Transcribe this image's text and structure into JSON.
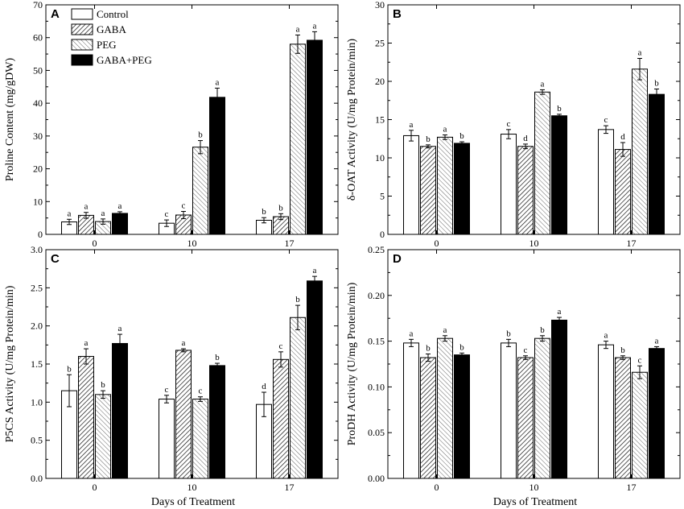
{
  "shared": {
    "groups": [
      "Control",
      "GABA",
      "PEG",
      "GABA+PEG"
    ],
    "categories": [
      "0",
      "10",
      "17"
    ],
    "xlabel": "Days of Treatment",
    "fills": {
      "Control": "#ffffff",
      "GABA": "hatch-dense",
      "PEG": "hatch-sparse",
      "GABA+PEG": "#000000"
    }
  },
  "chart_data": [
    {
      "type": "bar",
      "panel": "A",
      "ylabel": "Proline Content (mg/gDW)",
      "ylim": [
        0,
        70
      ],
      "yticks": [
        "0",
        "10",
        "20",
        "30",
        "40",
        "50",
        "60",
        "70"
      ],
      "categories": [
        "0",
        "10",
        "17"
      ],
      "show_legend": true,
      "series": [
        {
          "name": "Control",
          "values": [
            3.8,
            3.4,
            4.3
          ],
          "errors": [
            0.8,
            1.0,
            0.8
          ],
          "letters": [
            "a",
            "c",
            "b"
          ]
        },
        {
          "name": "GABA",
          "values": [
            5.8,
            5.9,
            5.4
          ],
          "errors": [
            0.9,
            1.1,
            0.9
          ],
          "letters": [
            "a",
            "c",
            "b"
          ]
        },
        {
          "name": "PEG",
          "values": [
            3.9,
            26.6,
            58.0
          ],
          "errors": [
            0.8,
            2.0,
            2.8
          ],
          "letters": [
            "a",
            "b",
            "a"
          ]
        },
        {
          "name": "GABA+PEG",
          "values": [
            6.4,
            41.8,
            59.2
          ],
          "errors": [
            0.5,
            2.8,
            2.6
          ],
          "letters": [
            "a",
            "a",
            "a"
          ]
        }
      ]
    },
    {
      "type": "bar",
      "panel": "B",
      "ylabel": "δ-OAT Activity (U/mg Protein/min)",
      "ylim": [
        0,
        30
      ],
      "yticks": [
        "0",
        "5",
        "10",
        "15",
        "20",
        "25",
        "30"
      ],
      "categories": [
        "0",
        "10",
        "17"
      ],
      "show_legend": false,
      "series": [
        {
          "name": "Control",
          "values": [
            12.9,
            13.1,
            13.7
          ],
          "errors": [
            0.7,
            0.6,
            0.5
          ],
          "letters": [
            "a",
            "c",
            "c"
          ]
        },
        {
          "name": "GABA",
          "values": [
            11.5,
            11.5,
            11.1
          ],
          "errors": [
            0.2,
            0.3,
            0.9
          ],
          "letters": [
            "b",
            "d",
            "d"
          ]
        },
        {
          "name": "PEG",
          "values": [
            12.7,
            18.6,
            21.6
          ],
          "errors": [
            0.3,
            0.3,
            1.4
          ],
          "letters": [
            "a",
            "a",
            "a"
          ]
        },
        {
          "name": "GABA+PEG",
          "values": [
            11.9,
            15.5,
            18.3
          ],
          "errors": [
            0.2,
            0.2,
            0.7
          ],
          "letters": [
            "b",
            "b",
            "b"
          ]
        }
      ]
    },
    {
      "type": "bar",
      "panel": "C",
      "ylabel": "P5CS Activity (U/mg Protein/min)",
      "ylim": [
        0,
        3.0
      ],
      "yticks": [
        "0.0",
        "0.5",
        "1.0",
        "1.5",
        "2.0",
        "2.5",
        "3.0"
      ],
      "categories": [
        "0",
        "10",
        "17"
      ],
      "show_legend": false,
      "series": [
        {
          "name": "Control",
          "values": [
            1.15,
            1.04,
            0.97
          ],
          "errors": [
            0.21,
            0.05,
            0.16
          ],
          "letters": [
            "b",
            "c",
            "d"
          ]
        },
        {
          "name": "GABA",
          "values": [
            1.6,
            1.68,
            1.56
          ],
          "errors": [
            0.1,
            0.02,
            0.1
          ],
          "letters": [
            "a",
            "a",
            "c"
          ]
        },
        {
          "name": "PEG",
          "values": [
            1.1,
            1.04,
            2.11
          ],
          "errors": [
            0.05,
            0.03,
            0.16
          ],
          "letters": [
            "b",
            "c",
            "b"
          ]
        },
        {
          "name": "GABA+PEG",
          "values": [
            1.77,
            1.48,
            2.59
          ],
          "errors": [
            0.12,
            0.03,
            0.06
          ],
          "letters": [
            "a",
            "b",
            "a"
          ]
        }
      ]
    },
    {
      "type": "bar",
      "panel": "D",
      "ylabel": "ProDH Activity (U/mg Protein/min)",
      "ylim": [
        0,
        0.25
      ],
      "yticks": [
        "0.00",
        "0.05",
        "0.10",
        "0.15",
        "0.20",
        "0.25"
      ],
      "categories": [
        "0",
        "10",
        "17"
      ],
      "show_legend": false,
      "series": [
        {
          "name": "Control",
          "values": [
            0.148,
            0.148,
            0.146
          ],
          "errors": [
            0.004,
            0.004,
            0.004
          ],
          "letters": [
            "a",
            "b",
            "a"
          ]
        },
        {
          "name": "GABA",
          "values": [
            0.132,
            0.132,
            0.132
          ],
          "errors": [
            0.004,
            0.002,
            0.002
          ],
          "letters": [
            "b",
            "c",
            "b"
          ]
        },
        {
          "name": "PEG",
          "values": [
            0.153,
            0.153,
            0.116
          ],
          "errors": [
            0.003,
            0.003,
            0.007
          ],
          "letters": [
            "a",
            "b",
            "c"
          ]
        },
        {
          "name": "GABA+PEG",
          "values": [
            0.135,
            0.173,
            0.142
          ],
          "errors": [
            0.002,
            0.003,
            0.002
          ],
          "letters": [
            "b",
            "a",
            "a"
          ]
        }
      ]
    }
  ]
}
